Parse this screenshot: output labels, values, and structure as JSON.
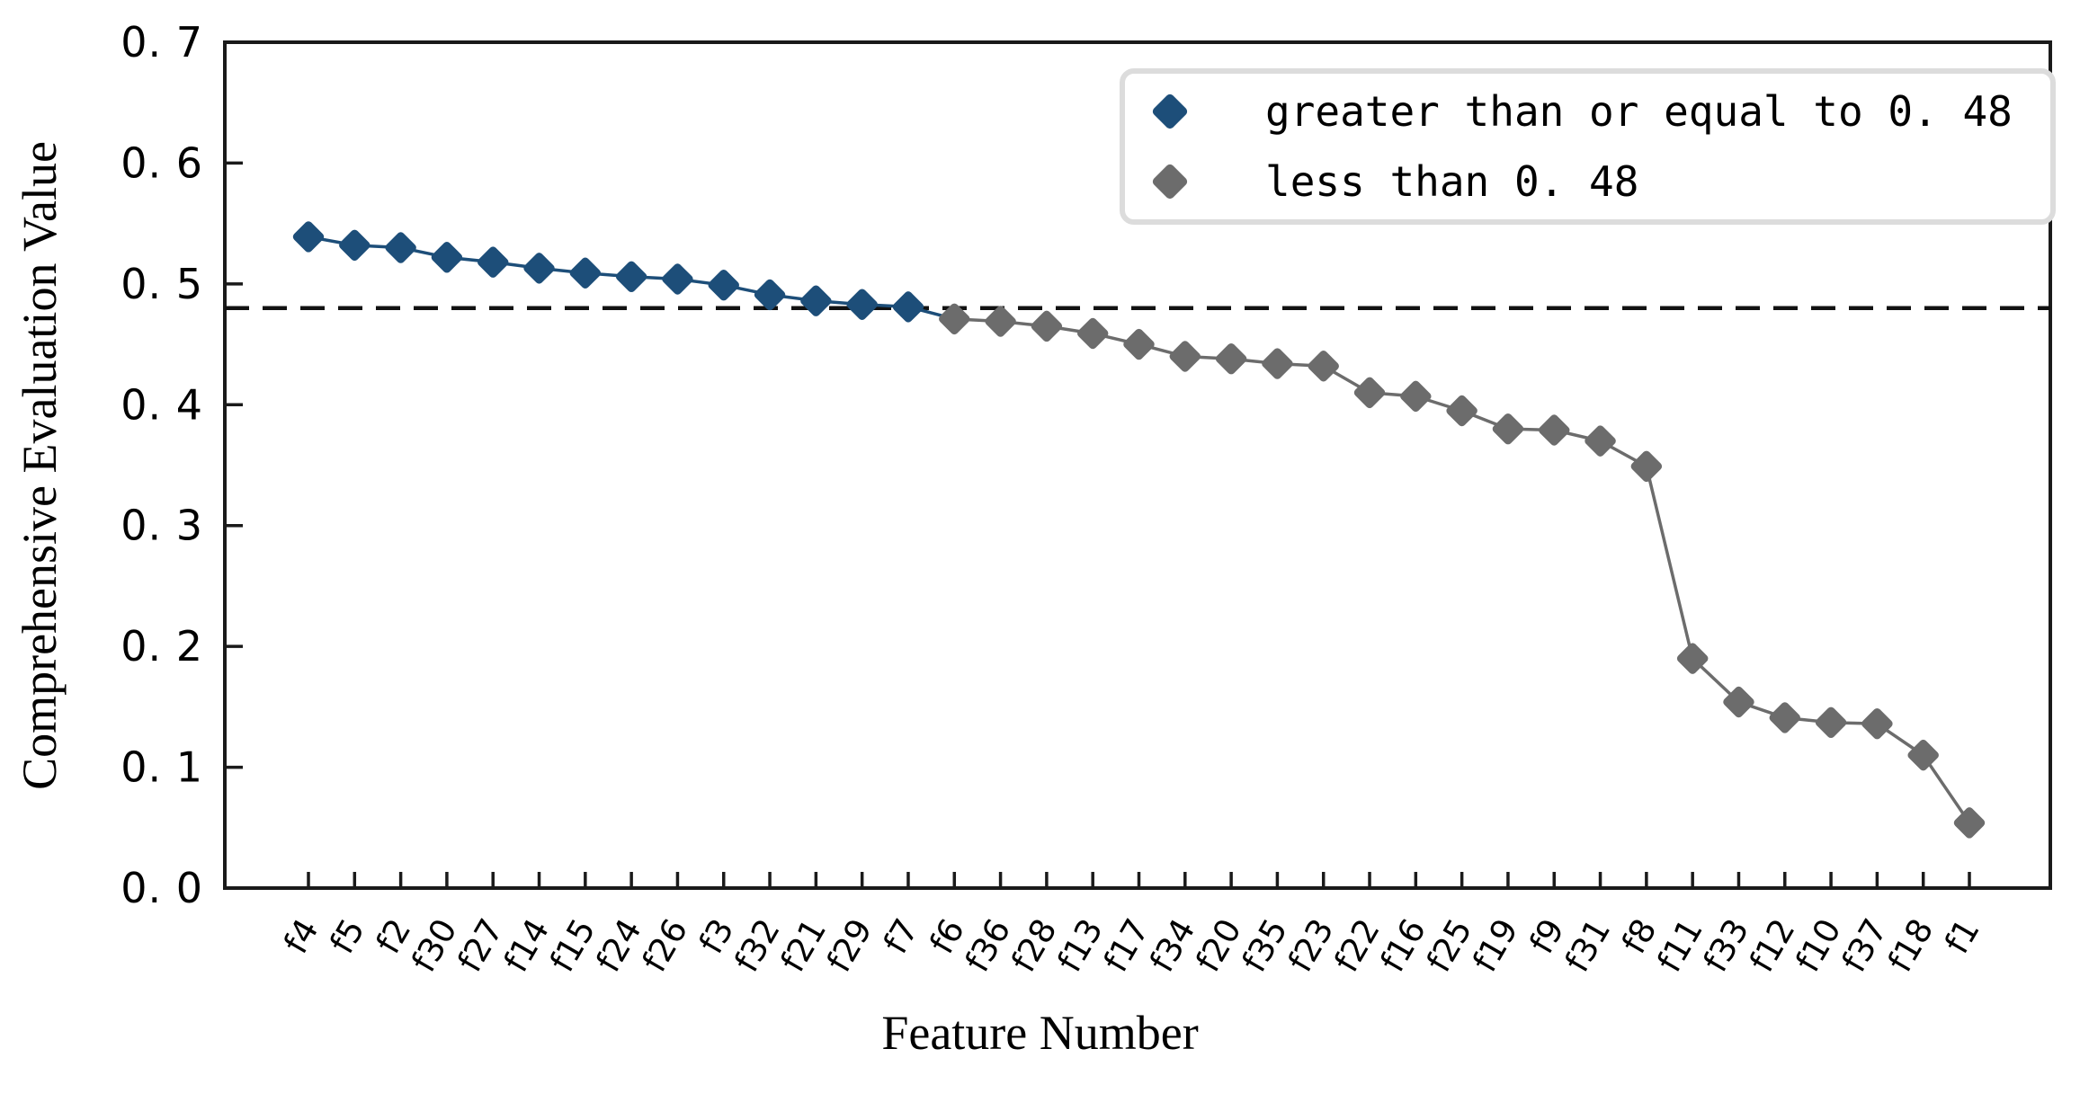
{
  "chart_data": {
    "type": "scatter",
    "title": "",
    "xlabel": "Feature Number",
    "ylabel": "Comprehensive Evaluation Value",
    "categories": [
      "f4",
      "f5",
      "f2",
      "f30",
      "f27",
      "f14",
      "f15",
      "f24",
      "f26",
      "f3",
      "f32",
      "f21",
      "f29",
      "f7",
      "f6",
      "f36",
      "f28",
      "f13",
      "f17",
      "f34",
      "f20",
      "f35",
      "f23",
      "f22",
      "f16",
      "f25",
      "f19",
      "f9",
      "f31",
      "f8",
      "f11",
      "f33",
      "f12",
      "f10",
      "f37",
      "f18",
      "f1"
    ],
    "values": [
      0.539,
      0.532,
      0.53,
      0.522,
      0.518,
      0.513,
      0.509,
      0.506,
      0.504,
      0.499,
      0.491,
      0.486,
      0.483,
      0.481,
      0.471,
      0.469,
      0.465,
      0.459,
      0.45,
      0.44,
      0.438,
      0.434,
      0.432,
      0.41,
      0.407,
      0.395,
      0.38,
      0.379,
      0.37,
      0.349,
      0.19,
      0.154,
      0.141,
      0.137,
      0.136,
      0.11,
      0.054
    ],
    "ylim": [
      0.0,
      0.7
    ],
    "y_tick_values": [
      0.0,
      0.1,
      0.2,
      0.3,
      0.4,
      0.5,
      0.6,
      0.7
    ],
    "y_tick_labels": [
      "0. 0",
      "0. 1",
      "0. 2",
      "0. 3",
      "0. 4",
      "0. 5",
      "0. 6",
      "0. 7"
    ],
    "grid": false,
    "legend_position": "top-right",
    "threshold_line": {
      "value": 0.48,
      "style": "dashed",
      "color": "#111111"
    },
    "series": [
      {
        "name": "greater than or equal to 0. 48",
        "color": "#1d4e79",
        "rule": ">= 0.48",
        "marker": "diamond",
        "count": 14
      },
      {
        "name": "less than 0. 48",
        "color": "#6c6c6c",
        "rule": "< 0.48",
        "marker": "diamond",
        "count": 23
      }
    ]
  },
  "legend": {
    "items": [
      {
        "label": "greater than or equal to 0. 48",
        "marker": "diamond-icon",
        "color": "#1d4e79"
      },
      {
        "label": "less than 0. 48",
        "marker": "diamond-icon",
        "color": "#6c6c6c"
      }
    ]
  },
  "axes": {
    "spine_color": "#1a1a1a",
    "tick_color": "#1a1a1a",
    "label_color": "#000000"
  }
}
